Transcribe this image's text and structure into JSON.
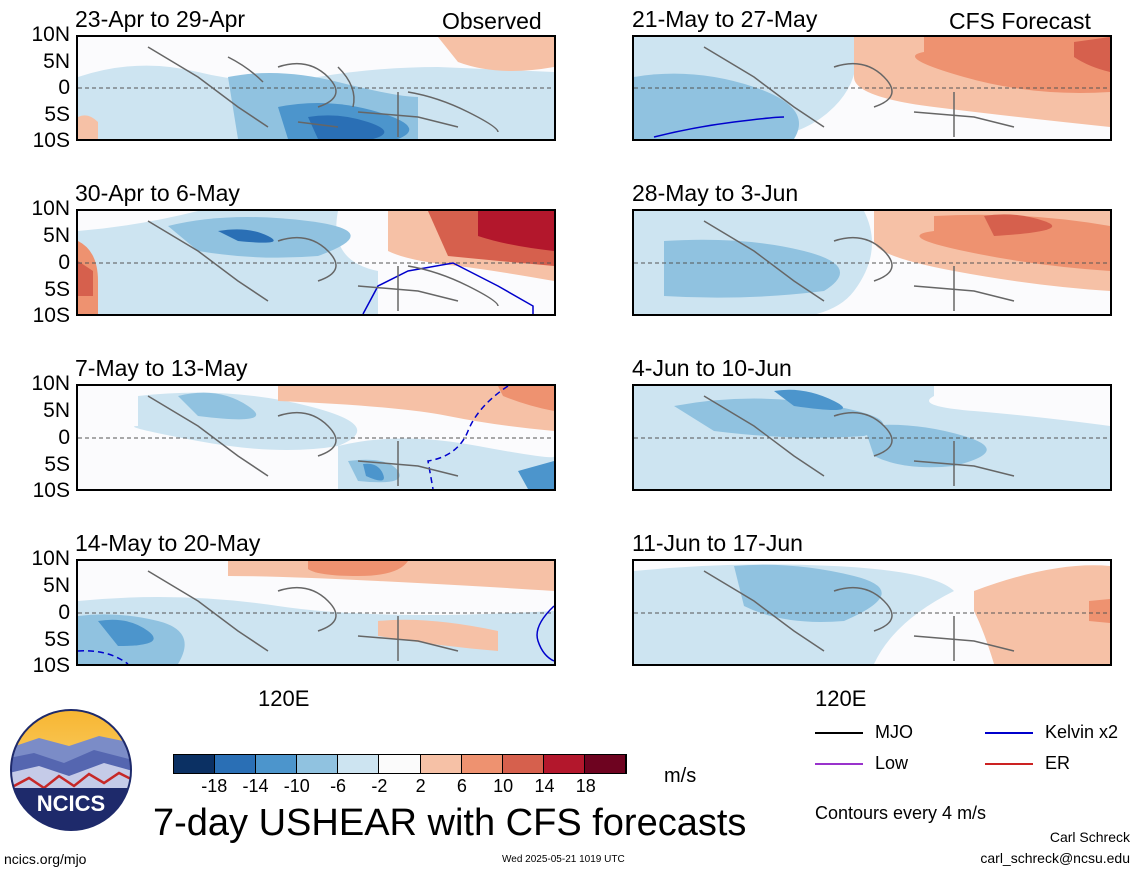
{
  "panels_left": [
    {
      "title": "23-Apr to 29-Apr",
      "tag": "Observed"
    },
    {
      "title": "30-Apr to 6-May",
      "tag": ""
    },
    {
      "title": "7-May to 13-May",
      "tag": ""
    },
    {
      "title": "14-May to 20-May",
      "tag": ""
    }
  ],
  "panels_right": [
    {
      "title": "21-May to 27-May",
      "tag": "CFS Forecast"
    },
    {
      "title": "28-May to 3-Jun",
      "tag": ""
    },
    {
      "title": "4-Jun to 10-Jun",
      "tag": ""
    },
    {
      "title": "11-Jun to 17-Jun",
      "tag": ""
    }
  ],
  "lat_labels": [
    "10N",
    "5N",
    "0",
    "5S",
    "10S"
  ],
  "x_label": "120E",
  "colorbar": {
    "ticks": [
      "-18",
      "-14",
      "-10",
      "-6",
      "-2",
      "2",
      "6",
      "10",
      "14",
      "18"
    ],
    "units": "m/s",
    "colors": [
      "#0b3063",
      "#2a6fb5",
      "#4c95cc",
      "#90c2e0",
      "#cde4f1",
      "#fbfbfb",
      "#f6c1a6",
      "#ee9270",
      "#d6604d",
      "#b3172c",
      "#6e0320"
    ]
  },
  "legend": {
    "items": [
      {
        "label": "MJO",
        "color": "#000000"
      },
      {
        "label": "Kelvin x2",
        "color": "#0000cc"
      },
      {
        "label": "Low",
        "color": "#9933cc"
      },
      {
        "label": "ER",
        "color": "#cc2222"
      }
    ],
    "contour_note": "Contours every 4 m/s"
  },
  "logo": {
    "text": "NCICS"
  },
  "main_title": "7-day USHEAR with CFS forecasts",
  "footer": {
    "left": "ncics.org/mjo",
    "center": "Wed 2025-05-21 1019 UTC",
    "author": "Carl Schreck",
    "email": "carl_schreck@ncsu.edu"
  }
}
